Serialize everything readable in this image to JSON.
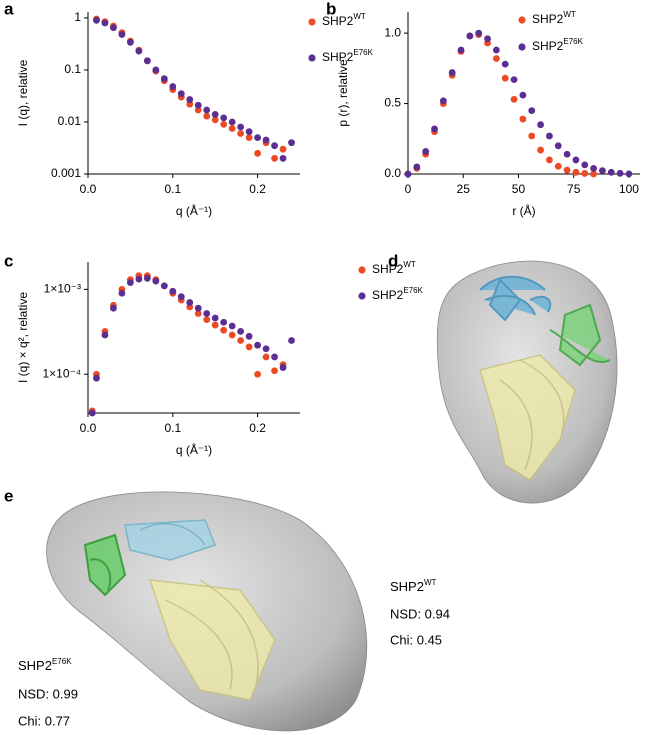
{
  "chart_data": [
    {
      "type": "scatter",
      "panel": "a",
      "ylabel": "I (q), relative",
      "xlabel": "q (Å⁻¹)",
      "yscale": "log",
      "xlim": [
        0,
        0.25
      ],
      "ylim": [
        0.001,
        1.3
      ],
      "xticks": [
        {
          "value": 0,
          "label": "0.0"
        },
        {
          "value": 0.1,
          "label": "0.1"
        },
        {
          "value": 0.2,
          "label": "0.2"
        }
      ],
      "yticks": [
        0.001,
        0.01,
        0.1,
        1
      ],
      "x": [
        0.01,
        0.02,
        0.03,
        0.04,
        0.05,
        0.06,
        0.07,
        0.08,
        0.09,
        0.1,
        0.11,
        0.12,
        0.13,
        0.14,
        0.15,
        0.16,
        0.17,
        0.18,
        0.19,
        0.2,
        0.21,
        0.22,
        0.23,
        0.24
      ],
      "series": [
        {
          "name": "SHP2",
          "name_sup": "WT",
          "color": "#ec4a24",
          "values": [
            0.95,
            0.85,
            0.7,
            0.52,
            0.36,
            0.24,
            0.15,
            0.095,
            0.062,
            0.042,
            0.03,
            0.022,
            0.017,
            0.013,
            0.011,
            0.009,
            0.0075,
            0.006,
            0.005,
            0.0025,
            0.004,
            0.002,
            0.003,
            null
          ]
        },
        {
          "name": "SHP2",
          "name_sup": "E76K",
          "color": "#5b2e93",
          "values": [
            0.9,
            0.8,
            0.65,
            0.48,
            0.34,
            0.23,
            0.15,
            0.1,
            0.068,
            0.048,
            0.035,
            0.027,
            0.021,
            0.017,
            0.014,
            0.012,
            0.01,
            0.008,
            0.0065,
            0.005,
            0.0045,
            0.0035,
            0.002,
            0.004
          ]
        }
      ]
    },
    {
      "type": "scatter",
      "panel": "b",
      "ylabel": "p (r), relative",
      "xlabel": "r (Å)",
      "xlim": [
        0,
        105
      ],
      "ylim": [
        0,
        1.15
      ],
      "xticks": [
        0,
        25,
        50,
        75,
        100
      ],
      "yticks": [
        {
          "value": 0,
          "label": "0.0"
        },
        {
          "value": 0.5,
          "label": "0.5"
        },
        {
          "value": 1,
          "label": "1.0"
        }
      ],
      "x": [
        0,
        4,
        8,
        12,
        16,
        20,
        24,
        28,
        32,
        36,
        40,
        44,
        48,
        52,
        56,
        60,
        64,
        68,
        72,
        76,
        80,
        84,
        88,
        92,
        96,
        100
      ],
      "series": [
        {
          "name": "SHP2",
          "name_sup": "WT",
          "color": "#ec4a24",
          "values": [
            0,
            0.04,
            0.14,
            0.3,
            0.5,
            0.7,
            0.87,
            0.98,
            0.99,
            0.93,
            0.82,
            0.68,
            0.53,
            0.39,
            0.27,
            0.17,
            0.1,
            0.055,
            0.027,
            0.012,
            0.004,
            0,
            null,
            null,
            null,
            null
          ]
        },
        {
          "name": "SHP2",
          "name_sup": "E76K",
          "color": "#5b2e93",
          "values": [
            0,
            0.05,
            0.16,
            0.32,
            0.52,
            0.72,
            0.88,
            0.98,
            1.0,
            0.96,
            0.88,
            0.78,
            0.67,
            0.56,
            0.45,
            0.35,
            0.27,
            0.2,
            0.14,
            0.1,
            0.065,
            0.04,
            0.024,
            0.012,
            0.005,
            0.001
          ]
        }
      ]
    },
    {
      "type": "scatter",
      "panel": "c",
      "ylabel": "I (q) × q², relative",
      "xlabel": "q (Å⁻¹)",
      "yscale": "log",
      "xlim": [
        0,
        0.25
      ],
      "ylim": [
        3.5e-05,
        0.0021
      ],
      "xticks": [
        {
          "value": 0,
          "label": "0.0"
        },
        {
          "value": 0.1,
          "label": "0.1"
        },
        {
          "value": 0.2,
          "label": "0.2"
        }
      ],
      "yticks": [
        {
          "value": 0.0001,
          "label": "1×10⁻⁴"
        },
        {
          "value": 0.001,
          "label": "1×10⁻³"
        }
      ],
      "x": [
        0.005,
        0.01,
        0.02,
        0.03,
        0.04,
        0.05,
        0.06,
        0.07,
        0.08,
        0.09,
        0.1,
        0.11,
        0.12,
        0.13,
        0.14,
        0.15,
        0.16,
        0.17,
        0.18,
        0.19,
        0.2,
        0.21,
        0.22,
        0.23,
        0.24
      ],
      "series": [
        {
          "name": "SHP2",
          "name_sup": "WT",
          "color": "#ec4a24",
          "values": [
            3.7e-05,
            0.0001,
            0.00032,
            0.00065,
            0.001,
            0.0013,
            0.00145,
            0.00145,
            0.0013,
            0.0011,
            0.0009,
            0.00075,
            0.00062,
            0.00052,
            0.00044,
            0.00038,
            0.00033,
            0.00029,
            0.00025,
            0.00021,
            0.0001,
            0.00016,
            0.00011,
            0.00013,
            null
          ]
        },
        {
          "name": "SHP2",
          "name_sup": "E76K",
          "color": "#5b2e93",
          "values": [
            3.5e-05,
            9e-05,
            0.00029,
            0.0006,
            0.0009,
            0.0012,
            0.00132,
            0.00135,
            0.00125,
            0.0011,
            0.00095,
            0.00082,
            0.0007,
            0.0006,
            0.00052,
            0.00046,
            0.00041,
            0.00037,
            0.00032,
            0.00028,
            0.00022,
            0.0002,
            0.00016,
            0.00012,
            0.00025
          ]
        }
      ]
    }
  ],
  "models": [
    {
      "panel": "d",
      "name": "SHP2",
      "name_sup": "WT",
      "nsd": "NSD: 0.94",
      "chi": "Chi: 0.45"
    },
    {
      "panel": "e",
      "name": "SHP2",
      "name_sup": "E76K",
      "nsd": "NSD: 0.99",
      "chi": "Chi: 0.77"
    }
  ]
}
